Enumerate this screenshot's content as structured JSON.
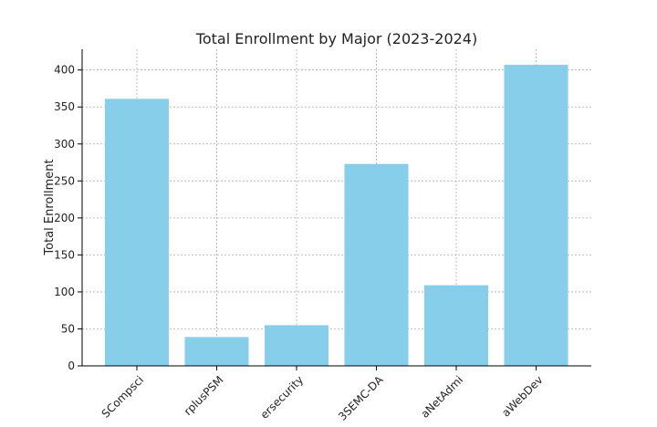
{
  "chart_data": {
    "type": "bar",
    "title": "Total Enrollment by Major (2023-2024)",
    "xlabel": "",
    "ylabel": "Total Enrollment",
    "categories": [
      "BSCompsci",
      "CyberplusPSM",
      "Cybersecurity",
      "BSEMC-DA",
      "DataNetAdmi",
      "DataWebDev"
    ],
    "visible_tick_labels": [
      "SCompsci",
      "rplusPSM",
      "ersecurity",
      "3SEMC-DA",
      "aNetAdmi",
      "aWebDev"
    ],
    "values": [
      361,
      39,
      55,
      273,
      109,
      407
    ],
    "ylim": [
      0,
      428
    ],
    "yticks": [
      0,
      50,
      100,
      150,
      200,
      250,
      300,
      350,
      400
    ],
    "grid": true,
    "bar_color": "#87CEEB",
    "grid_color": "#b0b0b0",
    "axis_color": "#000000",
    "text_color": "#222222"
  }
}
